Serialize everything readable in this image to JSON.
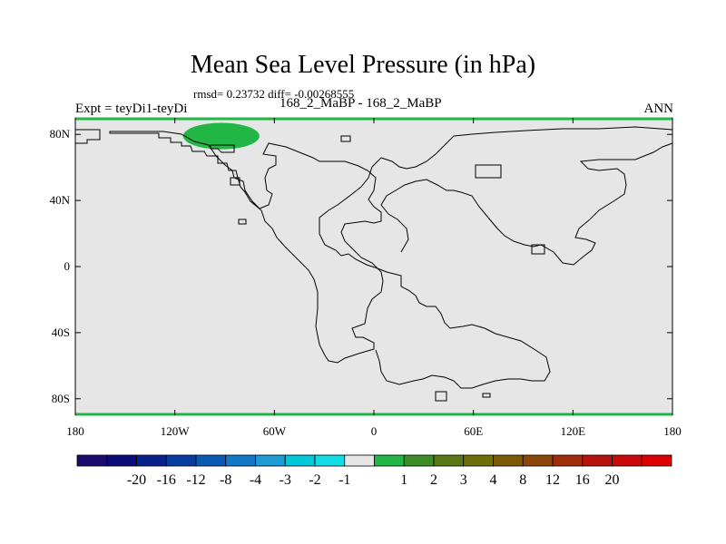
{
  "title": "Mean Sea Level Pressure (in hPa)",
  "stats": "rmsd= 0.23732 diff= -0.00268555",
  "expt_label": "Expt = teyDi1-teyDi",
  "experiment_label": "168_2_MaBP - 168_2_MaBP",
  "season_label": "ANN",
  "colors": {
    "land_background": "#e6e6e6",
    "coastline": "#000000",
    "anomaly_fill": "#22b745",
    "frame": "#000000"
  },
  "chart_data": {
    "type": "heatmap",
    "variable": "Mean Sea Level Pressure difference",
    "units": "hPa",
    "x_range": [
      -180,
      180
    ],
    "y_range": [
      -90,
      90
    ],
    "x_ticks": [
      {
        "value": -180,
        "label": "180"
      },
      {
        "value": -120,
        "label": "120W"
      },
      {
        "value": -60,
        "label": "60W"
      },
      {
        "value": 0,
        "label": "0"
      },
      {
        "value": 60,
        "label": "60E"
      },
      {
        "value": 120,
        "label": "120E"
      },
      {
        "value": 180,
        "label": "180"
      }
    ],
    "y_ticks": [
      {
        "value": 80,
        "label": "80N"
      },
      {
        "value": 40,
        "label": "40N"
      },
      {
        "value": 0,
        "label": "0"
      },
      {
        "value": -40,
        "label": "40S"
      },
      {
        "value": -80,
        "label": "80S"
      }
    ],
    "colorbar": {
      "colors": [
        "#1a0a6e",
        "#0a0a78",
        "#08228c",
        "#083ca0",
        "#0a5ab4",
        "#1478c8",
        "#1e9bd2",
        "#00c8dc",
        "#12dce6",
        "#e6e6e6",
        "#22b745",
        "#3c8c28",
        "#5a7814",
        "#6e6e0a",
        "#7d5a0a",
        "#8c460a",
        "#a02d0a",
        "#b4140a",
        "#c80a0a",
        "#dc0000"
      ],
      "labels": [
        "-20",
        "-16",
        "-12",
        "-8",
        "-4",
        "-3",
        "-2",
        "-1",
        "1",
        "2",
        "3",
        "4",
        "8",
        "12",
        "16",
        "20"
      ]
    },
    "anomaly_regions": [
      {
        "center_lon": -92,
        "center_lat": 79,
        "lon_halfwidth": 23,
        "lat_halfheight": 8,
        "value_range": [
          1,
          2
        ]
      }
    ]
  }
}
